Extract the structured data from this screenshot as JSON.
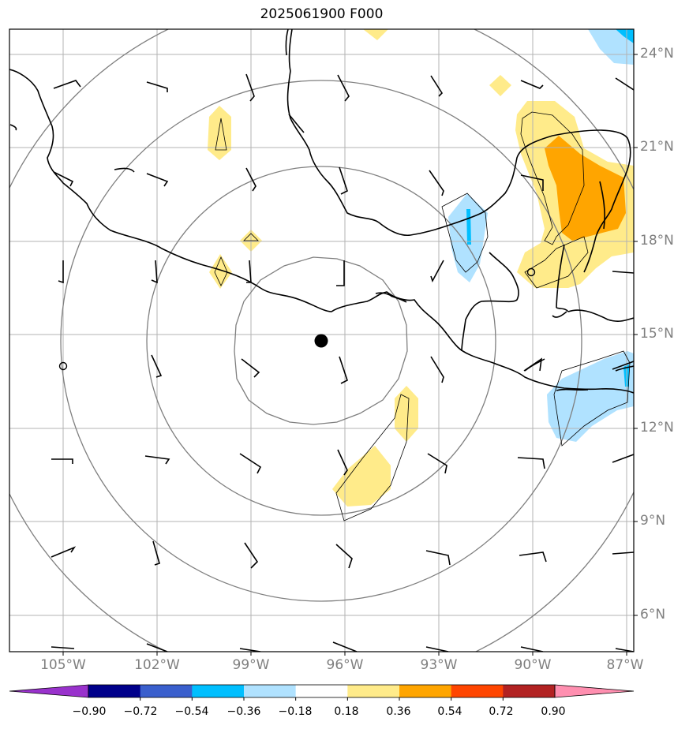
{
  "title": "2025061900 F000",
  "lat_ticks": [
    {
      "value": 24,
      "label": "24°N"
    },
    {
      "value": 21,
      "label": "21°N"
    },
    {
      "value": 18,
      "label": "18°N"
    },
    {
      "value": 15,
      "label": "15°N"
    },
    {
      "value": 12,
      "label": "12°N"
    },
    {
      "value": 9,
      "label": "9°N"
    },
    {
      "value": 6,
      "label": "6°N"
    }
  ],
  "lon_ticks": [
    {
      "value": -105,
      "label": "105°W"
    },
    {
      "value": -102,
      "label": "102°W"
    },
    {
      "value": -99,
      "label": "99°W"
    },
    {
      "value": -96,
      "label": "96°W"
    },
    {
      "value": -93,
      "label": "93°W"
    },
    {
      "value": -90,
      "label": "90°W"
    },
    {
      "value": -87,
      "label": "87°W"
    }
  ],
  "colorbar": {
    "ticks": [
      "−0.90",
      "−0.72",
      "−0.54",
      "−0.36",
      "−0.18",
      "0.18",
      "0.36",
      "0.54",
      "0.72",
      "0.90"
    ],
    "colors": [
      "#9932cc",
      "#00008b",
      "#3a5fcd",
      "#00bfff",
      "#b0e2ff",
      "#ffffff",
      "#ffeb8a",
      "#ffa500",
      "#ff4500",
      "#b22222",
      "#ff8fb0"
    ]
  },
  "center_marker": {
    "lon": -96.8,
    "lat": 14.8
  },
  "extent": {
    "lon_min": -106.7,
    "lon_max": -86.7,
    "lat_min": 4.9,
    "lat_max": 24.9
  }
}
